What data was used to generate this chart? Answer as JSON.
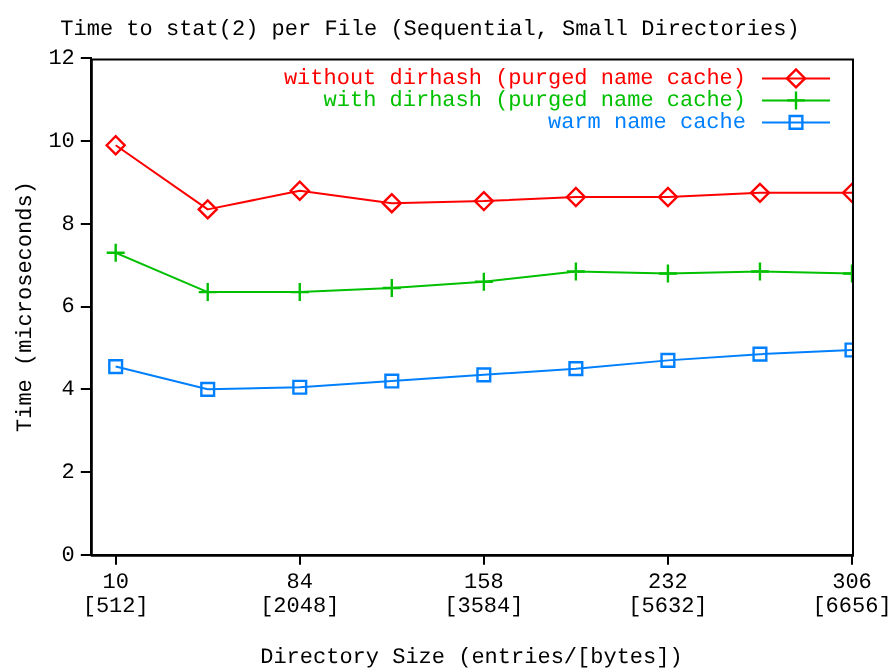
{
  "chart_data": {
    "type": "line",
    "title": "Time to stat(2) per File (Sequential, Small Directories)",
    "xlabel": "Directory Size (entries/[bytes])",
    "ylabel": "Time (microseconds)",
    "x": [
      10,
      47,
      84,
      121,
      158,
      195,
      232,
      269,
      306
    ],
    "series": [
      {
        "name": "without dirhash (purged name cache)",
        "color": "#ff0000",
        "marker": "diamond",
        "values": [
          9.9,
          8.35,
          8.8,
          8.5,
          8.55,
          8.65,
          8.65,
          8.75,
          8.75
        ]
      },
      {
        "name": "with dirhash (purged name cache)",
        "color": "#00c000",
        "marker": "cross",
        "values": [
          7.3,
          6.35,
          6.35,
          6.45,
          6.6,
          6.85,
          6.8,
          6.85,
          6.8
        ]
      },
      {
        "name": "warm name cache",
        "color": "#0080ff",
        "marker": "square",
        "values": [
          4.55,
          4.0,
          4.05,
          4.2,
          4.35,
          4.5,
          4.7,
          4.85,
          4.95
        ]
      }
    ],
    "xlim": [
      0,
      306
    ],
    "xticks": [
      10,
      84,
      158,
      232,
      306
    ],
    "annotations": [
      "[512]",
      "[2048]",
      "[3584]",
      "[5632]",
      "[6656]"
    ],
    "ylim": [
      0,
      12
    ],
    "yticks": [
      0,
      2,
      4,
      6,
      8,
      10,
      12
    ],
    "grid": false,
    "legend": "top right",
    "line_style": "solid"
  }
}
